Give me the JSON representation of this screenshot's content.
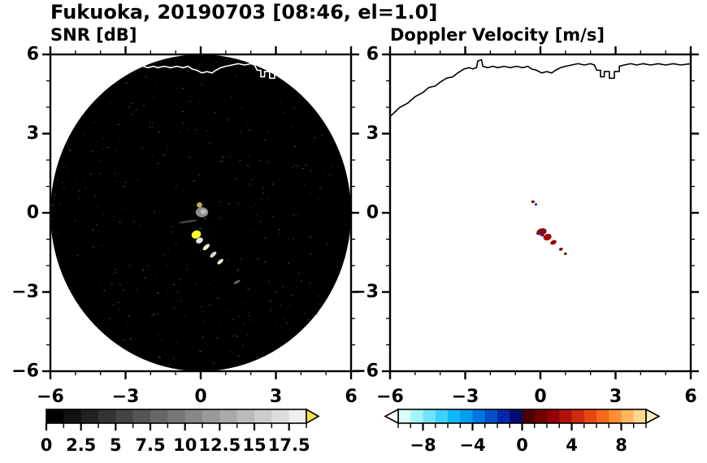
{
  "title": "Fukuoka, 20190703 [08:46, el=1.0]",
  "coastline": [
    [
      -6.0,
      3.65
    ],
    [
      -5.6,
      4.0
    ],
    [
      -5.3,
      4.15
    ],
    [
      -5.0,
      4.4
    ],
    [
      -4.7,
      4.55
    ],
    [
      -4.45,
      4.75
    ],
    [
      -4.2,
      4.8
    ],
    [
      -4.0,
      4.95
    ],
    [
      -3.75,
      5.1
    ],
    [
      -3.5,
      5.15
    ],
    [
      -3.3,
      5.3
    ],
    [
      -3.05,
      5.45
    ],
    [
      -2.85,
      5.5
    ],
    [
      -2.7,
      5.45
    ],
    [
      -2.55,
      5.5
    ],
    [
      -2.5,
      5.75
    ],
    [
      -2.35,
      5.8
    ],
    [
      -2.3,
      5.55
    ],
    [
      -2.1,
      5.5
    ],
    [
      -1.9,
      5.55
    ],
    [
      -1.7,
      5.5
    ],
    [
      -1.45,
      5.55
    ],
    [
      -1.2,
      5.5
    ],
    [
      -0.95,
      5.55
    ],
    [
      -0.7,
      5.5
    ],
    [
      -0.5,
      5.55
    ],
    [
      -0.35,
      5.45
    ],
    [
      -0.15,
      5.4
    ],
    [
      0.05,
      5.3
    ],
    [
      0.25,
      5.35
    ],
    [
      0.45,
      5.3
    ],
    [
      0.6,
      5.4
    ],
    [
      0.8,
      5.5
    ],
    [
      1.0,
      5.55
    ],
    [
      1.25,
      5.6
    ],
    [
      1.5,
      5.65
    ],
    [
      1.75,
      5.6
    ],
    [
      2.0,
      5.65
    ],
    [
      2.15,
      5.6
    ],
    [
      2.25,
      5.4
    ],
    [
      2.4,
      5.4
    ],
    [
      2.4,
      5.15
    ],
    [
      2.55,
      5.15
    ],
    [
      2.55,
      5.35
    ],
    [
      2.75,
      5.35
    ],
    [
      2.75,
      5.1
    ],
    [
      2.95,
      5.1
    ],
    [
      2.95,
      5.35
    ],
    [
      3.15,
      5.35
    ],
    [
      3.15,
      5.55
    ],
    [
      3.35,
      5.6
    ],
    [
      3.6,
      5.65
    ],
    [
      3.85,
      5.6
    ],
    [
      4.1,
      5.65
    ],
    [
      4.4,
      5.6
    ],
    [
      4.7,
      5.65
    ],
    [
      5.0,
      5.6
    ],
    [
      5.3,
      5.65
    ],
    [
      5.6,
      5.6
    ],
    [
      6.0,
      5.65
    ]
  ],
  "chart_data": [
    {
      "type": "heatmap",
      "id": "snr",
      "title": "SNR [dB]",
      "xlim": [
        -6,
        6
      ],
      "ylim": [
        -6,
        6
      ],
      "x_ticks": [
        -6,
        -3,
        0,
        3,
        6
      ],
      "x_tick_labels": [
        "−6",
        "−3",
        "0",
        "3",
        "6"
      ],
      "y_ticks": [
        -6,
        -3,
        0,
        3,
        6
      ],
      "y_tick_labels": [
        "−6",
        "−3",
        "0",
        "3",
        "6"
      ],
      "minor_tick_step": 1,
      "background": "#ffffff",
      "coverage_disk": {
        "center": [
          0,
          0
        ],
        "radius": 6,
        "color": "#000000"
      },
      "coastline_color": "#ffffff",
      "echoes": [
        {
          "x": -0.05,
          "y": 0.3,
          "w": 0.22,
          "h": 0.2,
          "rot": 0,
          "color": "#b3b34d"
        },
        {
          "x": 0.05,
          "y": 0.02,
          "w": 0.5,
          "h": 0.38,
          "rot": 0,
          "color": "#8c8c8c"
        },
        {
          "x": 0.1,
          "y": 0.05,
          "w": 0.22,
          "h": 0.18,
          "rot": 0,
          "color": "#bfbfbf"
        },
        {
          "x": -0.5,
          "y": -0.33,
          "w": 0.75,
          "h": 0.09,
          "rot": -8,
          "color": "#404040"
        },
        {
          "x": -0.18,
          "y": -0.82,
          "w": 0.38,
          "h": 0.3,
          "rot": -20,
          "color": "#ffff26"
        },
        {
          "x": -0.05,
          "y": -1.05,
          "w": 0.3,
          "h": 0.2,
          "rot": -30,
          "color": "#e6e6e6"
        },
        {
          "x": 0.22,
          "y": -1.3,
          "w": 0.34,
          "h": 0.15,
          "rot": -42,
          "color": "#f2f2cc"
        },
        {
          "x": 0.5,
          "y": -1.58,
          "w": 0.32,
          "h": 0.14,
          "rot": -42,
          "color": "#d9d9d9"
        },
        {
          "x": 0.78,
          "y": -1.85,
          "w": 0.3,
          "h": 0.13,
          "rot": -42,
          "color": "#f7f2c8"
        },
        {
          "x": 1.45,
          "y": -2.62,
          "w": 0.3,
          "h": 0.09,
          "rot": -30,
          "color": "#666666"
        }
      ],
      "colorbar": {
        "range": [
          0,
          18.75
        ],
        "segment_step": 1.25,
        "segment_colors": [
          "#000000",
          "#111111",
          "#222222",
          "#333333",
          "#444444",
          "#555555",
          "#666666",
          "#777777",
          "#888888",
          "#999999",
          "#aaaaaa",
          "#bbbbbb",
          "#cccccc",
          "#dddddd",
          "#eeeeee"
        ],
        "under_color": null,
        "over_color": "#f0e442",
        "tick_values": [
          0,
          2.5,
          5,
          7.5,
          10,
          12.5,
          15,
          17.5
        ],
        "tick_labels": [
          "0",
          "2.5",
          "5",
          "7.5",
          "10",
          "12.5",
          "15",
          "17.5"
        ]
      }
    },
    {
      "type": "heatmap",
      "id": "velocity",
      "title": "Doppler Velocity [m/s]",
      "xlim": [
        -6,
        6
      ],
      "ylim": [
        -6,
        6
      ],
      "x_ticks": [
        -6,
        -3,
        0,
        3,
        6
      ],
      "x_tick_labels": [
        "−6",
        "−3",
        "0",
        "3",
        "6"
      ],
      "y_ticks": [
        -6,
        -3,
        0,
        3,
        6
      ],
      "y_tick_labels": [
        "−6",
        "−3",
        "0",
        "3",
        "6"
      ],
      "minor_tick_step": 1,
      "background": "#ffffff",
      "coverage_disk": null,
      "coastline_color": "#000000",
      "echoes": [
        {
          "x": -0.3,
          "y": 0.42,
          "w": 0.14,
          "h": 0.1,
          "rot": 0,
          "color": "#8c0000"
        },
        {
          "x": -0.18,
          "y": 0.32,
          "w": 0.1,
          "h": 0.08,
          "rot": 0,
          "color": "#001a8c"
        },
        {
          "x": 0.05,
          "y": -0.72,
          "w": 0.4,
          "h": 0.26,
          "rot": -15,
          "color": "#8c000d"
        },
        {
          "x": 0.28,
          "y": -0.92,
          "w": 0.34,
          "h": 0.24,
          "rot": -20,
          "color": "#a60000"
        },
        {
          "x": 0.08,
          "y": -0.85,
          "w": 0.12,
          "h": 0.1,
          "rot": 0,
          "color": "#1a1aa6"
        },
        {
          "x": -0.12,
          "y": -0.78,
          "w": 0.1,
          "h": 0.09,
          "rot": 0,
          "color": "#30308c"
        },
        {
          "x": 0.52,
          "y": -1.12,
          "w": 0.26,
          "h": 0.16,
          "rot": -25,
          "color": "#990000"
        },
        {
          "x": 0.82,
          "y": -1.38,
          "w": 0.16,
          "h": 0.11,
          "rot": -25,
          "color": "#800000"
        },
        {
          "x": 1.0,
          "y": -1.55,
          "w": 0.12,
          "h": 0.09,
          "rot": -25,
          "color": "#660000"
        }
      ],
      "colorbar": {
        "range": [
          -10,
          10
        ],
        "segment_step": 1,
        "segment_colors": [
          "#d9ffff",
          "#a6f2ff",
          "#73e4ff",
          "#40d0ff",
          "#0db8ff",
          "#009ef2",
          "#0077e0",
          "#004fc9",
          "#0029a8",
          "#000d73",
          "#4d0000",
          "#700000",
          "#930008",
          "#b3120c",
          "#cf2a0e",
          "#e64712",
          "#f56a1d",
          "#ff8f33",
          "#ffb45e",
          "#ffd78f"
        ],
        "under_color": "#ffffff",
        "over_color": "#ffedc2",
        "tick_values": [
          -8,
          -4,
          0,
          4,
          8
        ],
        "tick_labels": [
          "−8",
          "−4",
          "0",
          "4",
          "8"
        ]
      }
    }
  ]
}
